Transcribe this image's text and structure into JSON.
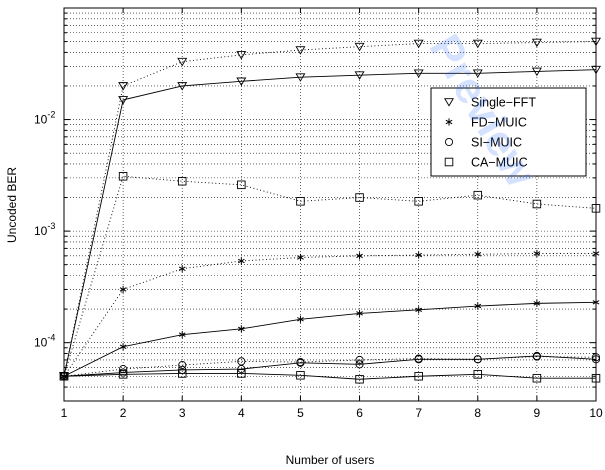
{
  "chart_data": {
    "type": "line",
    "xlabel": "Number of users",
    "ylabel": "Uncoded BER",
    "x": [
      1,
      2,
      3,
      4,
      5,
      6,
      7,
      8,
      9,
      10
    ],
    "xlim": [
      1,
      10
    ],
    "ylim": [
      3e-05,
      0.1
    ],
    "yscale": "log",
    "x_tick_labels": [
      "1",
      "2",
      "3",
      "4",
      "5",
      "6",
      "7",
      "8",
      "9",
      "10"
    ],
    "y_tick_labels": [
      {
        "base": "10",
        "exp": "-4",
        "value": 0.0001
      },
      {
        "base": "10",
        "exp": "-3",
        "value": 0.001
      },
      {
        "base": "10",
        "exp": "-2",
        "value": 0.01
      }
    ],
    "grid": true,
    "legend_position": "right",
    "series": [
      {
        "name": "Single−FFT",
        "marker": "triangle-down",
        "dotted": [
          5e-05,
          0.02,
          0.033,
          0.038,
          0.042,
          0.045,
          0.048,
          0.048,
          0.049,
          0.05
        ],
        "solid": [
          5e-05,
          0.015,
          0.02,
          0.022,
          0.024,
          0.025,
          0.026,
          0.026,
          0.027,
          0.028
        ]
      },
      {
        "name": "FD−MUIC",
        "marker": "asterisk",
        "dotted": [
          5e-05,
          0.0003,
          0.00046,
          0.00054,
          0.00058,
          0.0006,
          0.00061,
          0.00062,
          0.00063,
          0.00063
        ],
        "solid": [
          5e-05,
          9.2e-05,
          0.000118,
          0.000133,
          0.000162,
          0.000183,
          0.000197,
          0.000213,
          0.000225,
          0.00023
        ]
      },
      {
        "name": "SI−MUIC",
        "marker": "circle",
        "dotted": [
          5e-05,
          5.8e-05,
          6.3e-05,
          6.8e-05,
          6.7e-05,
          7e-05,
          7.2e-05,
          7.1e-05,
          7.5e-05,
          7.4e-05
        ],
        "solid": [
          5e-05,
          5.4e-05,
          5.7e-05,
          5.8e-05,
          6.6e-05,
          6.4e-05,
          7.1e-05,
          7.1e-05,
          7.6e-05,
          7.1e-05
        ]
      },
      {
        "name": "CA−MUIC",
        "marker": "square",
        "dotted": [
          5e-05,
          0.0031,
          0.0028,
          0.0026,
          0.00185,
          0.002,
          0.00185,
          0.0021,
          0.00175,
          0.0016
        ],
        "solid": [
          5e-05,
          5.2e-05,
          5.3e-05,
          5.3e-05,
          5.1e-05,
          4.7e-05,
          5e-05,
          5.2e-05,
          4.8e-05,
          4.8e-05
        ]
      }
    ],
    "colors": {
      "line": "#000000",
      "grid": "#000000",
      "background": "#ffffff"
    }
  },
  "watermark": {
    "text": "Preview",
    "color": "#1565ff"
  }
}
